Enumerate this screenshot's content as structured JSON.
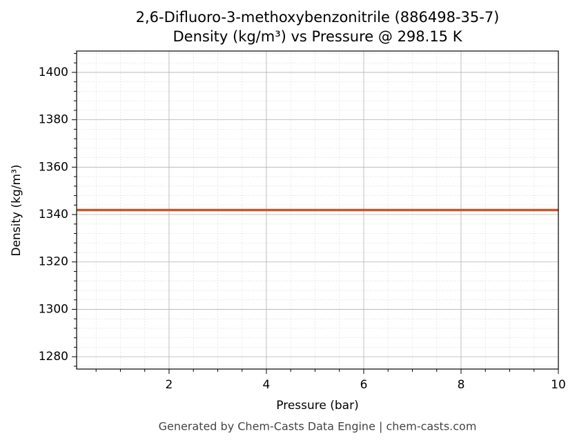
{
  "chart_data": {
    "type": "line",
    "title": "2,6-Difluoro-3-methoxybenzonitrile (886498-35-7)",
    "subtitle": "Density (kg/m³) vs Pressure @ 298.15 K",
    "x_label": "Pressure (bar)",
    "y_label": "Density (kg/m³)",
    "footer": "Generated by Chem-Casts Data Engine | chem-casts.com",
    "x": [
      0.1,
      1,
      2,
      3,
      4,
      5,
      6,
      7,
      8,
      9,
      10
    ],
    "series": [
      {
        "name": "Density",
        "color": "#c8552b",
        "values": [
          1341.9,
          1341.9,
          1341.9,
          1341.9,
          1341.9,
          1341.9,
          1341.9,
          1341.9,
          1341.9,
          1341.9,
          1341.9
        ]
      }
    ],
    "xlim": [
      0.1,
      10
    ],
    "ylim": [
      1274.8,
      1409.0
    ],
    "xticks": [
      2,
      4,
      6,
      8,
      10
    ],
    "yticks": [
      1280,
      1300,
      1320,
      1340,
      1360,
      1380,
      1400
    ],
    "xminorticks": [
      0.5,
      1,
      1.5,
      2.5,
      3,
      3.5,
      4.5,
      5,
      5.5,
      6.5,
      7,
      7.5,
      8.5,
      9,
      9.5
    ],
    "yminorticks": [
      1276,
      1284,
      1288,
      1292,
      1296,
      1304,
      1308,
      1312,
      1316,
      1324,
      1328,
      1332,
      1336,
      1344,
      1348,
      1352,
      1356,
      1364,
      1368,
      1372,
      1376,
      1384,
      1388,
      1392,
      1396,
      1404,
      1408
    ],
    "grid": true
  }
}
